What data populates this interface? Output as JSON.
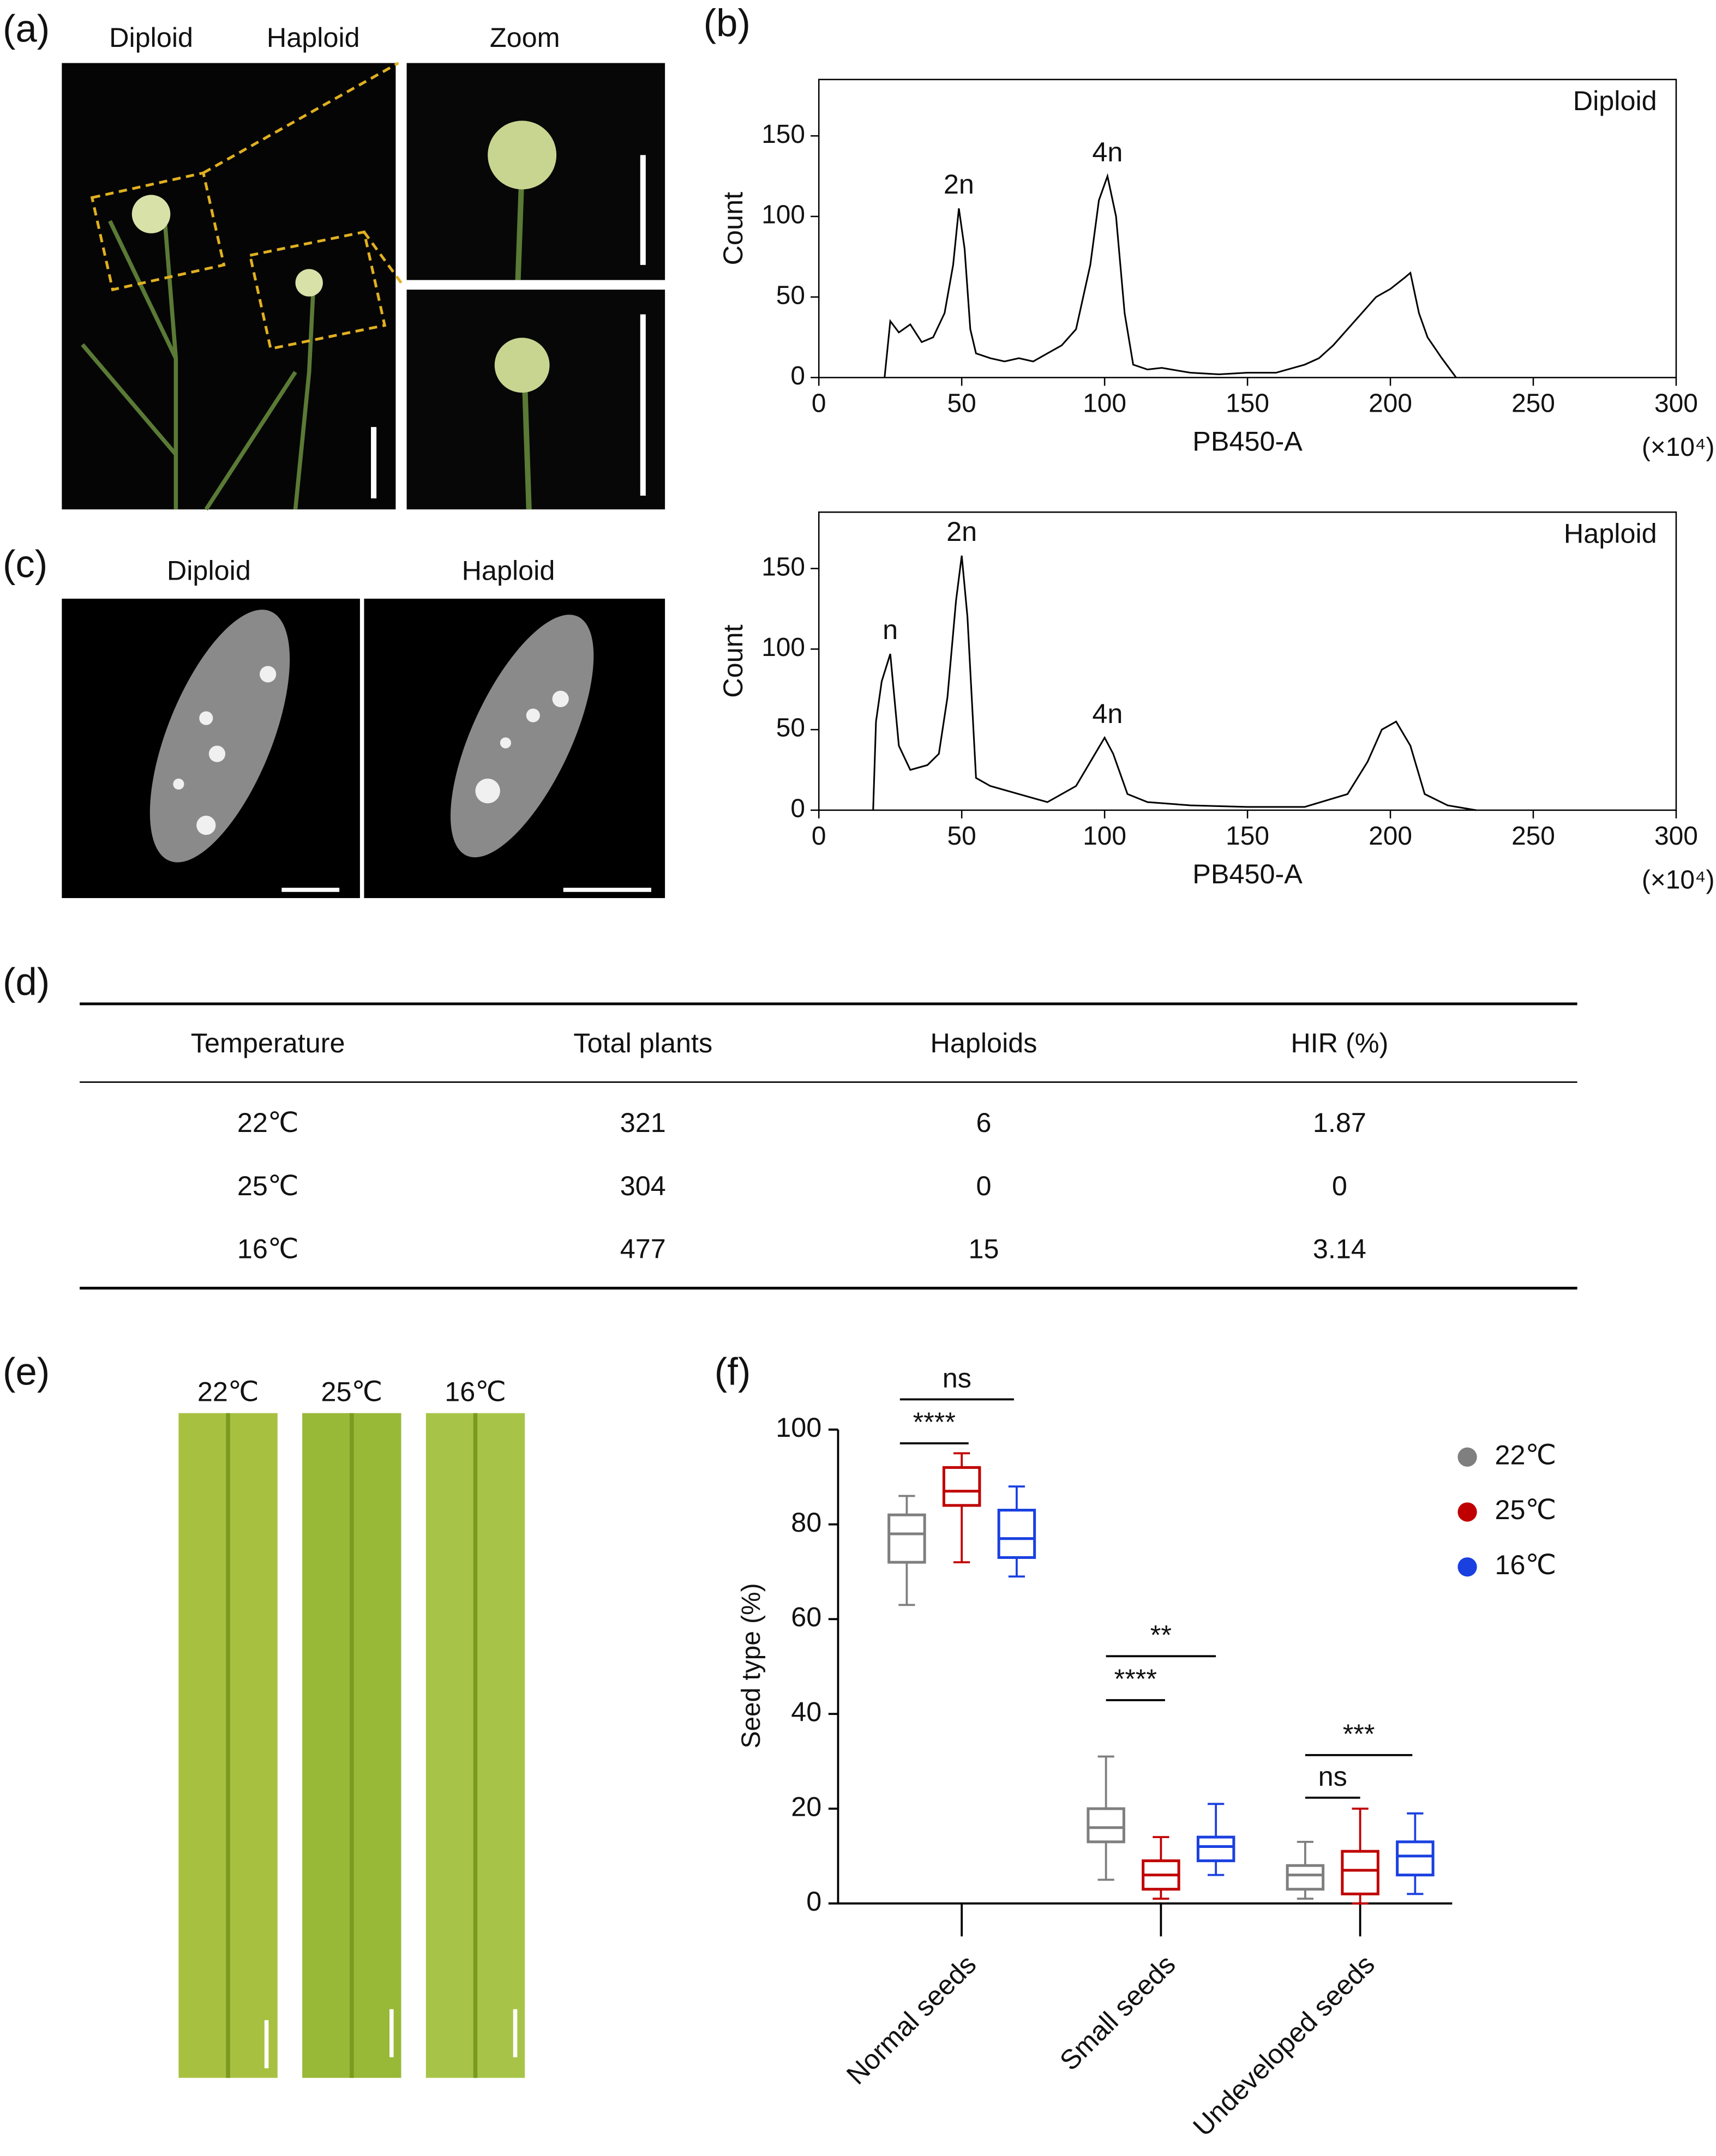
{
  "panel_labels": [
    "(a)",
    "(b)",
    "(c)",
    "(d)",
    "(e)",
    "(f)"
  ],
  "panel_a": {
    "labels": [
      "Diploid",
      "Haploid",
      "Zoom"
    ]
  },
  "panel_c": {
    "labels": [
      "Diploid",
      "Haploid"
    ]
  },
  "panel_e": {
    "labels": [
      "22℃",
      "25℃",
      "16℃"
    ]
  },
  "table": {
    "header": [
      "Temperature",
      "Total plants",
      "Haploids",
      "HIR (%)"
    ],
    "rows": [
      [
        "22℃",
        "321",
        "6",
        "1.87"
      ],
      [
        "25℃",
        "304",
        "0",
        "0"
      ],
      [
        "16℃",
        "477",
        "15",
        "3.14"
      ]
    ]
  },
  "chart_data": [
    {
      "type": "line",
      "label": "Diploid",
      "x_label": "PB450-A",
      "x_unit": "(×10⁴)",
      "y_label": "Count",
      "x": [
        23,
        25,
        28,
        32,
        36,
        40,
        44,
        47,
        49,
        51,
        53,
        55,
        60,
        65,
        70,
        75,
        80,
        85,
        90,
        95,
        98,
        101,
        104,
        107,
        110,
        115,
        120,
        130,
        140,
        150,
        160,
        170,
        175,
        180,
        185,
        190,
        195,
        200,
        205,
        207,
        210,
        213,
        218,
        223
      ],
      "values": [
        0,
        35,
        28,
        33,
        22,
        25,
        40,
        70,
        105,
        80,
        30,
        15,
        12,
        10,
        12,
        10,
        15,
        20,
        30,
        70,
        110,
        125,
        100,
        40,
        8,
        5,
        6,
        3,
        2,
        3,
        3,
        8,
        12,
        20,
        30,
        40,
        50,
        55,
        62,
        65,
        40,
        25,
        12,
        0
      ],
      "color": "#000000",
      "xlim": [
        0,
        300
      ],
      "ylim": [
        0,
        185
      ],
      "xticks": [
        0,
        50,
        100,
        150,
        200,
        250,
        300
      ],
      "yticks": [
        0,
        50,
        100,
        150
      ],
      "annotations": [
        {
          "text": "2n",
          "x": 49,
          "y": 105
        },
        {
          "text": "4n",
          "x": 101,
          "y": 125
        }
      ]
    },
    {
      "type": "line",
      "label": "Haploid",
      "x_label": "PB450-A",
      "x_unit": "(×10⁴)",
      "y_label": "Count",
      "x": [
        19,
        20,
        22,
        25,
        28,
        32,
        38,
        42,
        45,
        48,
        50,
        52,
        55,
        60,
        70,
        80,
        90,
        95,
        100,
        103,
        108,
        115,
        130,
        150,
        170,
        185,
        192,
        197,
        202,
        207,
        212,
        220,
        230
      ],
      "values": [
        0,
        55,
        80,
        97,
        40,
        25,
        28,
        35,
        70,
        130,
        158,
        120,
        20,
        15,
        10,
        5,
        15,
        30,
        45,
        35,
        10,
        5,
        3,
        2,
        2,
        10,
        30,
        50,
        55,
        40,
        10,
        3,
        0
      ],
      "color": "#000000",
      "xlim": [
        0,
        300
      ],
      "ylim": [
        0,
        185
      ],
      "xticks": [
        0,
        50,
        100,
        150,
        200,
        250,
        300
      ],
      "yticks": [
        0,
        50,
        100,
        150
      ],
      "annotations": [
        {
          "text": "n",
          "x": 25,
          "y": 97
        },
        {
          "text": "2n",
          "x": 50,
          "y": 158
        },
        {
          "text": "4n",
          "x": 101,
          "y": 45
        }
      ]
    },
    {
      "type": "box",
      "y_label": "Seed type  (%)",
      "categories": [
        "Normal seeds",
        "Small seeds",
        "Undeveloped seeds"
      ],
      "series": [
        {
          "name": "22℃",
          "color": "#7f7f7f",
          "values": [
            {
              "min": 63,
              "q1": 72,
              "median": 78,
              "q3": 82,
              "max": 86
            },
            {
              "min": 5,
              "q1": 13,
              "median": 16,
              "q3": 20,
              "max": 31
            },
            {
              "min": 1,
              "q1": 3,
              "median": 6,
              "q3": 8,
              "max": 13
            }
          ]
        },
        {
          "name": "25℃",
          "color": "#c00000",
          "values": [
            {
              "min": 72,
              "q1": 84,
              "median": 87,
              "q3": 92,
              "max": 95
            },
            {
              "min": 1,
              "q1": 3,
              "median": 6,
              "q3": 9,
              "max": 14
            },
            {
              "min": 0,
              "q1": 2,
              "median": 7,
              "q3": 11,
              "max": 20
            }
          ]
        },
        {
          "name": "16℃",
          "color": "#1a40e0",
          "values": [
            {
              "min": 69,
              "q1": 73,
              "median": 77,
              "q3": 83,
              "max": 88
            },
            {
              "min": 6,
              "q1": 9,
              "median": 12,
              "q3": 14,
              "max": 21
            },
            {
              "min": 2,
              "q1": 6,
              "median": 10,
              "q3": 13,
              "max": 19
            }
          ]
        }
      ],
      "ylim": [
        0,
        100
      ],
      "yticks": [
        0,
        20,
        40,
        60,
        80,
        100
      ],
      "annotations": [
        "ns",
        "****",
        "**",
        "****",
        "***",
        "ns"
      ]
    }
  ]
}
